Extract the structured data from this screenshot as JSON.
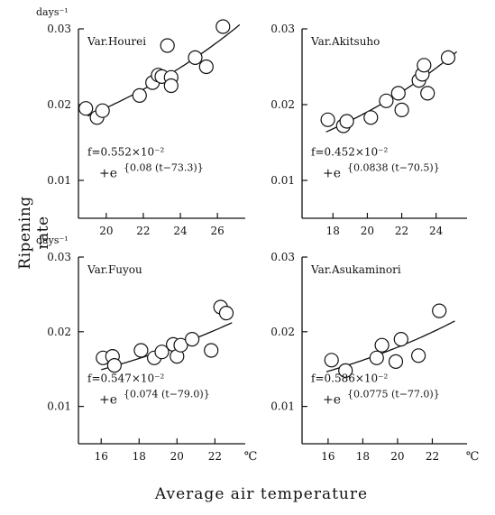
{
  "ylabel": "Ripening rate",
  "xlabel": "Average air temperature",
  "chart_data": [
    {
      "type": "scatter",
      "title": "Var.Hourei",
      "unit_label": "days⁻¹",
      "xunit": "",
      "xlim": [
        18.5,
        27.5
      ],
      "ylim": [
        0.005,
        0.03
      ],
      "xticks": [
        20,
        22,
        24,
        26
      ],
      "yticks": [
        0.01,
        0.02,
        0.03
      ],
      "ytick_labels": [
        "0.01",
        "0.02",
        "0.03"
      ],
      "points": [
        [
          18.9,
          0.0195
        ],
        [
          19.5,
          0.0183
        ],
        [
          19.8,
          0.0192
        ],
        [
          21.8,
          0.0212
        ],
        [
          22.5,
          0.0229
        ],
        [
          22.8,
          0.0239
        ],
        [
          23.0,
          0.0237
        ],
        [
          23.3,
          0.0278
        ],
        [
          23.5,
          0.0236
        ],
        [
          23.5,
          0.0225
        ],
        [
          24.8,
          0.0262
        ],
        [
          25.4,
          0.025
        ],
        [
          26.3,
          0.0303
        ]
      ],
      "formula_line1": "f=0.552×10⁻²",
      "formula_line2": "+e",
      "formula_exponent": "{0.08 (t−73.3)}",
      "curve": {
        "a": 0.00552,
        "b": 0.08,
        "c": 73.3,
        "x_from": 19.0,
        "x_to": 27.2
      }
    },
    {
      "type": "scatter",
      "title": "Var.Akitsuho",
      "unit_label": "",
      "xunit": "",
      "xlim": [
        16.2,
        25.8
      ],
      "ylim": [
        0.005,
        0.03
      ],
      "xticks": [
        18,
        20,
        22,
        24
      ],
      "yticks": [
        0.01,
        0.02,
        0.03
      ],
      "ytick_labels": [
        "0.01",
        "0.02",
        "0.03"
      ],
      "points": [
        [
          17.7,
          0.018
        ],
        [
          18.6,
          0.0172
        ],
        [
          18.8,
          0.0178
        ],
        [
          20.2,
          0.0183
        ],
        [
          21.1,
          0.0205
        ],
        [
          21.8,
          0.0215
        ],
        [
          22.0,
          0.0193
        ],
        [
          23.0,
          0.0232
        ],
        [
          23.2,
          0.024
        ],
        [
          23.3,
          0.0252
        ],
        [
          23.5,
          0.0215
        ],
        [
          24.7,
          0.0262
        ]
      ],
      "formula_line1": "f=0.452×10⁻²",
      "formula_line2": "+e",
      "formula_exponent": "{0.0838 (t−70.5)}",
      "curve": {
        "a": 0.00452,
        "b": 0.0838,
        "c": 70.5,
        "x_from": 17.6,
        "x_to": 25.2
      }
    },
    {
      "type": "scatter",
      "title": "Var.Fuyou",
      "unit_label": "days⁻¹",
      "xunit": "℃",
      "xlim": [
        14.8,
        23.6
      ],
      "ylim": [
        0.005,
        0.03
      ],
      "xticks": [
        16,
        18,
        20,
        22
      ],
      "yticks": [
        0.01,
        0.02,
        0.03
      ],
      "ytick_labels": [
        "0.01",
        "0.02",
        "0.03"
      ],
      "points": [
        [
          16.1,
          0.0165
        ],
        [
          16.6,
          0.0167
        ],
        [
          16.7,
          0.0155
        ],
        [
          18.1,
          0.0175
        ],
        [
          18.8,
          0.0165
        ],
        [
          19.2,
          0.0173
        ],
        [
          19.8,
          0.0183
        ],
        [
          20.0,
          0.0167
        ],
        [
          20.2,
          0.0182
        ],
        [
          20.8,
          0.019
        ],
        [
          21.8,
          0.0175
        ],
        [
          22.3,
          0.0233
        ],
        [
          22.6,
          0.0225
        ]
      ],
      "formula_line1": "f=0.547×10⁻²",
      "formula_line2": "+e",
      "formula_exponent": "{0.074 (t−79.0)}",
      "curve": {
        "a": 0.00547,
        "b": 0.074,
        "c": 79.0,
        "x_from": 16.0,
        "x_to": 22.9
      }
    },
    {
      "type": "scatter",
      "title": "Var.Asukaminori",
      "unit_label": "",
      "xunit": "℃",
      "xlim": [
        14.5,
        24.0
      ],
      "ylim": [
        0.005,
        0.03
      ],
      "xticks": [
        16,
        18,
        20,
        22
      ],
      "yticks": [
        0.01,
        0.02,
        0.03
      ],
      "ytick_labels": [
        "0.01",
        "0.02",
        "0.03"
      ],
      "points": [
        [
          16.2,
          0.0162
        ],
        [
          17.0,
          0.0148
        ],
        [
          18.8,
          0.0165
        ],
        [
          19.1,
          0.0182
        ],
        [
          19.9,
          0.016
        ],
        [
          20.2,
          0.019
        ],
        [
          21.2,
          0.0168
        ],
        [
          22.4,
          0.0228
        ]
      ],
      "formula_line1": "f=0.586×10⁻²",
      "formula_line2": "+e",
      "formula_exponent": "{0.0775 (t−77.0)}",
      "curve": {
        "a": 0.00586,
        "b": 0.0775,
        "c": 77.0,
        "x_from": 15.9,
        "x_to": 23.3
      }
    }
  ]
}
